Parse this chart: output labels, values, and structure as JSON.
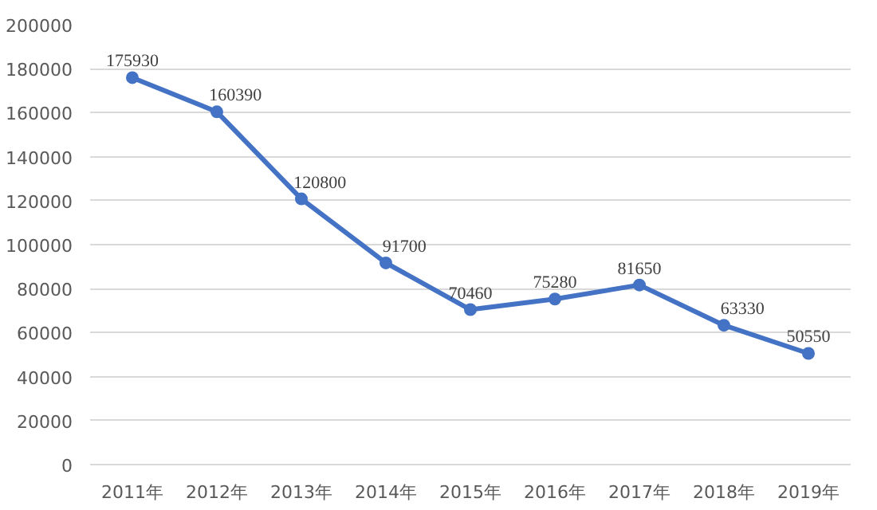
{
  "chart_data": {
    "type": "line",
    "categories": [
      "2011年",
      "2012年",
      "2013年",
      "2014年",
      "2015年",
      "2016年",
      "2017年",
      "2018年",
      "2019年"
    ],
    "series": [
      {
        "color": "#4472c4",
        "values": [
          175930,
          160390,
          120800,
          91700,
          70460,
          75280,
          81650,
          63330,
          50550
        ]
      }
    ],
    "ylim": [
      0,
      200000
    ],
    "yticks": [
      0,
      20000,
      40000,
      60000,
      80000,
      100000,
      120000,
      140000,
      160000,
      180000,
      200000
    ],
    "grid": "y",
    "marker": "circle",
    "line_style": "solid",
    "data_labels": true
  }
}
